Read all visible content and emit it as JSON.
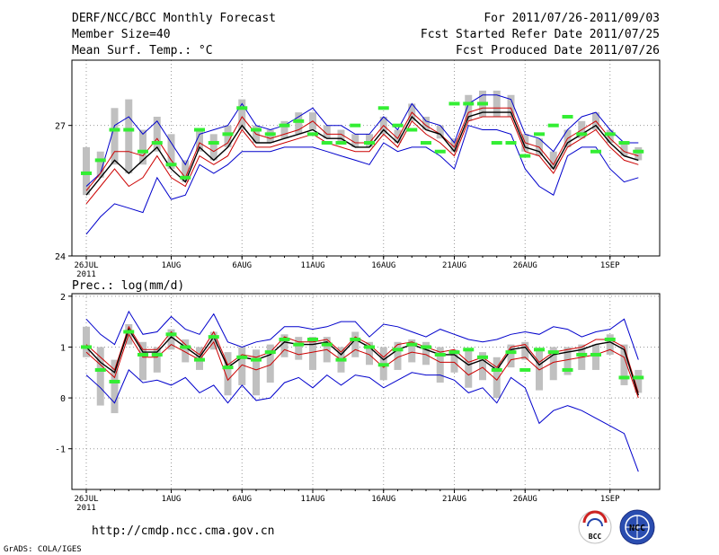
{
  "header": {
    "title": "DERF/NCC/BCC Monthly Forecast",
    "member_size": "Member Size=40",
    "variable1": "Mean Surf. Temp.: °C",
    "period": "For 2011/07/26-2011/09/03",
    "started": "Fcst Started Refer Date 2011/07/25",
    "produced": "Fcst Produced Date 2011/07/26"
  },
  "x_ticks": [
    {
      "day": 0,
      "label": "26JUL",
      "label2": "2011"
    },
    {
      "day": 6,
      "label": "1AUG"
    },
    {
      "day": 11,
      "label": "6AUG"
    },
    {
      "day": 16,
      "label": "11AUG"
    },
    {
      "day": 21,
      "label": "16AUG"
    },
    {
      "day": 26,
      "label": "21AUG"
    },
    {
      "day": 31,
      "label": "26AUG"
    },
    {
      "day": 37,
      "label": "1SEP"
    }
  ],
  "footer": {
    "url": "http://cmdp.ncc.cma.gov.cn",
    "grads": "GrADS: COLA/IGES",
    "logo1_text": "BCC",
    "logo2_text": "NCC"
  },
  "colors": {
    "max_min": "#0000cc",
    "percentile": "#cc0000",
    "mean": "#000000",
    "observed": "#33ee33",
    "spread": "#c0c0c0"
  },
  "chart_data": [
    {
      "type": "line",
      "title": "Mean Surf. Temp.: °C",
      "xlabel": "",
      "ylabel": "",
      "x": [
        0,
        1,
        2,
        3,
        4,
        5,
        6,
        7,
        8,
        9,
        10,
        11,
        12,
        13,
        14,
        15,
        16,
        17,
        18,
        19,
        20,
        21,
        22,
        23,
        24,
        25,
        26,
        27,
        28,
        29,
        30,
        31,
        32,
        33,
        34,
        35,
        36,
        37,
        38,
        39
      ],
      "ylim": [
        24,
        28.5
      ],
      "yticks": [
        24,
        27
      ],
      "series": [
        {
          "name": "max",
          "color": "#0000cc",
          "values": [
            25.6,
            25.9,
            27.0,
            27.2,
            26.8,
            27.1,
            26.6,
            26.1,
            26.8,
            26.9,
            27.0,
            27.5,
            27.0,
            26.9,
            27.0,
            27.2,
            27.4,
            27.0,
            27.0,
            26.8,
            26.8,
            27.2,
            26.9,
            27.5,
            27.1,
            27.0,
            26.6,
            27.5,
            27.7,
            27.7,
            27.6,
            26.8,
            26.7,
            26.4,
            26.9,
            27.2,
            27.3,
            26.9,
            26.6,
            26.6
          ]
        },
        {
          "name": "p_high",
          "color": "#cc0000",
          "values": [
            25.5,
            25.9,
            26.4,
            26.4,
            26.3,
            26.7,
            26.2,
            25.8,
            26.6,
            26.4,
            26.6,
            27.2,
            26.8,
            26.7,
            26.8,
            26.9,
            27.1,
            26.8,
            26.8,
            26.6,
            26.6,
            27.0,
            26.7,
            27.3,
            27.0,
            26.8,
            26.5,
            27.3,
            27.4,
            27.4,
            27.4,
            26.6,
            26.5,
            26.1,
            26.7,
            26.9,
            27.1,
            26.7,
            26.4,
            26.3
          ]
        },
        {
          "name": "mean",
          "color": "#000000",
          "values": [
            25.4,
            25.8,
            26.2,
            25.9,
            26.2,
            26.5,
            26.0,
            25.7,
            26.5,
            26.2,
            26.5,
            27.0,
            26.6,
            26.6,
            26.7,
            26.8,
            26.9,
            26.7,
            26.7,
            26.5,
            26.5,
            26.9,
            26.6,
            27.2,
            26.9,
            26.8,
            26.4,
            27.2,
            27.3,
            27.3,
            27.3,
            26.5,
            26.4,
            26.0,
            26.6,
            26.8,
            27.0,
            26.6,
            26.3,
            26.2
          ]
        },
        {
          "name": "p_low",
          "color": "#cc0000",
          "values": [
            25.2,
            25.6,
            26.0,
            25.6,
            25.8,
            26.3,
            25.8,
            25.6,
            26.3,
            26.1,
            26.3,
            26.9,
            26.5,
            26.5,
            26.6,
            26.7,
            26.8,
            26.6,
            26.5,
            26.4,
            26.4,
            26.8,
            26.5,
            27.1,
            26.8,
            26.6,
            26.3,
            27.1,
            27.2,
            27.2,
            27.2,
            26.4,
            26.3,
            25.9,
            26.5,
            26.7,
            26.9,
            26.5,
            26.2,
            26.1
          ]
        },
        {
          "name": "min",
          "color": "#0000cc",
          "values": [
            24.5,
            24.9,
            25.2,
            25.1,
            25.0,
            25.8,
            25.3,
            25.4,
            26.1,
            25.9,
            26.1,
            26.4,
            26.4,
            26.4,
            26.5,
            26.5,
            26.5,
            26.4,
            26.3,
            26.2,
            26.1,
            26.6,
            26.4,
            26.5,
            26.5,
            26.3,
            26.0,
            27.0,
            26.9,
            26.9,
            26.8,
            26.0,
            25.6,
            25.4,
            26.3,
            26.5,
            26.5,
            26.0,
            25.7,
            25.8
          ]
        }
      ],
      "observed": [
        25.9,
        26.2,
        26.9,
        26.9,
        26.4,
        26.6,
        26.1,
        25.8,
        26.9,
        26.6,
        26.8,
        27.4,
        26.9,
        26.8,
        27.0,
        27.1,
        26.8,
        26.6,
        26.6,
        27.0,
        26.6,
        27.4,
        27.0,
        26.9,
        26.6,
        26.4,
        27.5,
        27.5,
        27.5,
        26.6,
        26.6,
        26.3,
        26.8,
        27.0,
        27.2,
        26.8,
        26.4,
        26.8,
        26.6,
        26.4
      ],
      "spread": [
        [
          25.4,
          26.5
        ],
        [
          25.8,
          26.4
        ],
        [
          26.1,
          27.4
        ],
        [
          25.9,
          27.6
        ],
        [
          26.1,
          26.9
        ],
        [
          26.4,
          27.2
        ],
        [
          26.0,
          26.8
        ],
        [
          25.7,
          26.2
        ],
        [
          26.4,
          26.9
        ],
        [
          26.2,
          26.8
        ],
        [
          26.5,
          27.0
        ],
        [
          26.9,
          27.6
        ],
        [
          26.6,
          27.0
        ],
        [
          26.6,
          26.9
        ],
        [
          26.7,
          27.1
        ],
        [
          26.8,
          27.3
        ],
        [
          26.9,
          27.3
        ],
        [
          26.7,
          27.0
        ],
        [
          26.6,
          26.9
        ],
        [
          26.5,
          26.8
        ],
        [
          26.5,
          26.8
        ],
        [
          26.8,
          27.2
        ],
        [
          26.6,
          26.9
        ],
        [
          27.1,
          27.5
        ],
        [
          26.9,
          27.2
        ],
        [
          26.7,
          27.0
        ],
        [
          26.4,
          26.7
        ],
        [
          27.1,
          27.7
        ],
        [
          27.2,
          27.8
        ],
        [
          27.2,
          27.8
        ],
        [
          27.2,
          27.7
        ],
        [
          26.4,
          26.8
        ],
        [
          26.3,
          26.7
        ],
        [
          26.0,
          26.4
        ],
        [
          26.5,
          26.9
        ],
        [
          26.7,
          27.1
        ],
        [
          26.9,
          27.3
        ],
        [
          26.6,
          26.9
        ],
        [
          26.3,
          26.6
        ],
        [
          26.2,
          26.5
        ]
      ]
    },
    {
      "type": "line",
      "title": "Prec.: log(mm/d)",
      "xlabel": "",
      "ylabel": "",
      "x": [
        0,
        1,
        2,
        3,
        4,
        5,
        6,
        7,
        8,
        9,
        10,
        11,
        12,
        13,
        14,
        15,
        16,
        17,
        18,
        19,
        20,
        21,
        22,
        23,
        24,
        25,
        26,
        27,
        28,
        29,
        30,
        31,
        32,
        33,
        34,
        35,
        36,
        37,
        38,
        39
      ],
      "ylim": [
        -1.8,
        2.05
      ],
      "yticks": [
        -1,
        0,
        1,
        2
      ],
      "series": [
        {
          "name": "max",
          "color": "#0000cc",
          "values": [
            1.55,
            1.25,
            1.05,
            1.7,
            1.25,
            1.3,
            1.6,
            1.35,
            1.25,
            1.65,
            1.1,
            1.0,
            1.1,
            1.15,
            1.4,
            1.4,
            1.35,
            1.4,
            1.5,
            1.5,
            1.2,
            1.45,
            1.4,
            1.3,
            1.2,
            1.35,
            1.25,
            1.15,
            1.1,
            1.15,
            1.25,
            1.3,
            1.25,
            1.4,
            1.35,
            1.2,
            1.3,
            1.35,
            1.55,
            0.75
          ]
        },
        {
          "name": "p_high",
          "color": "#cc0000",
          "values": [
            1.05,
            0.8,
            0.55,
            1.4,
            0.95,
            0.95,
            1.3,
            1.05,
            0.85,
            1.3,
            0.65,
            0.85,
            0.8,
            0.9,
            1.2,
            1.1,
            1.1,
            1.15,
            0.9,
            1.2,
            1.05,
            0.8,
            1.05,
            1.1,
            1.0,
            0.9,
            0.95,
            0.7,
            0.8,
            0.6,
            1.0,
            1.05,
            0.7,
            0.9,
            0.95,
            1.0,
            1.15,
            1.15,
            1.0,
            0.1
          ]
        },
        {
          "name": "mean",
          "color": "#000000",
          "values": [
            1.0,
            0.7,
            0.5,
            1.35,
            0.9,
            0.9,
            1.2,
            1.0,
            0.8,
            1.2,
            0.6,
            0.8,
            0.75,
            0.85,
            1.1,
            1.05,
            1.05,
            1.1,
            0.85,
            1.15,
            1.0,
            0.75,
            0.95,
            1.05,
            0.95,
            0.85,
            0.85,
            0.65,
            0.75,
            0.55,
            0.95,
            1.0,
            0.65,
            0.85,
            0.9,
            0.95,
            1.05,
            1.1,
            0.95,
            0.05
          ]
        },
        {
          "name": "p_low",
          "color": "#cc0000",
          "values": [
            0.9,
            0.65,
            0.4,
            1.25,
            0.8,
            0.8,
            1.05,
            0.9,
            0.75,
            1.1,
            0.35,
            0.65,
            0.55,
            0.65,
            0.95,
            0.85,
            0.9,
            0.95,
            0.75,
            0.95,
            0.85,
            0.6,
            0.8,
            0.9,
            0.85,
            0.7,
            0.7,
            0.45,
            0.6,
            0.35,
            0.75,
            0.8,
            0.55,
            0.7,
            0.75,
            0.8,
            0.85,
            0.95,
            0.8,
            0.0
          ]
        },
        {
          "name": "min",
          "color": "#0000cc",
          "values": [
            0.45,
            0.2,
            -0.1,
            0.55,
            0.3,
            0.35,
            0.25,
            0.4,
            0.1,
            0.25,
            -0.1,
            0.25,
            -0.05,
            0.0,
            0.3,
            0.4,
            0.2,
            0.45,
            0.25,
            0.45,
            0.4,
            0.2,
            0.35,
            0.5,
            0.45,
            0.45,
            0.35,
            0.1,
            0.2,
            -0.1,
            0.4,
            0.2,
            -0.5,
            -0.25,
            -0.15,
            -0.25,
            -0.4,
            -0.55,
            -0.7,
            -1.45
          ]
        }
      ],
      "observed": [
        1.0,
        0.55,
        0.32,
        1.3,
        0.85,
        0.85,
        1.25,
        1.0,
        0.75,
        1.2,
        0.6,
        0.8,
        0.75,
        0.9,
        1.15,
        1.05,
        1.15,
        1.05,
        0.75,
        1.15,
        1.0,
        0.65,
        0.95,
        1.05,
        1.0,
        0.85,
        0.9,
        0.95,
        0.8,
        0.55,
        0.9,
        0.55,
        0.95,
        0.9,
        0.55,
        0.85,
        0.85,
        1.15,
        0.4,
        0.4
      ],
      "spread": [
        [
          0.8,
          1.4
        ],
        [
          -0.15,
          1.0
        ],
        [
          -0.3,
          0.75
        ],
        [
          1.05,
          1.45
        ],
        [
          0.35,
          1.1
        ],
        [
          0.5,
          1.0
        ],
        [
          0.95,
          1.35
        ],
        [
          0.7,
          1.15
        ],
        [
          0.55,
          1.0
        ],
        [
          0.95,
          1.3
        ],
        [
          0.05,
          0.9
        ],
        [
          0.25,
          1.0
        ],
        [
          0.05,
          0.95
        ],
        [
          0.3,
          1.05
        ],
        [
          0.8,
          1.25
        ],
        [
          0.75,
          1.2
        ],
        [
          0.55,
          1.2
        ],
        [
          0.7,
          1.2
        ],
        [
          0.5,
          1.0
        ],
        [
          0.8,
          1.3
        ],
        [
          0.65,
          1.1
        ],
        [
          0.35,
          1.0
        ],
        [
          0.55,
          1.1
        ],
        [
          0.7,
          1.15
        ],
        [
          0.65,
          1.1
        ],
        [
          0.3,
          1.0
        ],
        [
          0.5,
          0.95
        ],
        [
          0.2,
          0.95
        ],
        [
          0.35,
          0.9
        ],
        [
          0.0,
          0.8
        ],
        [
          0.6,
          1.05
        ],
        [
          0.75,
          1.1
        ],
        [
          0.15,
          0.95
        ],
        [
          0.35,
          1.0
        ],
        [
          0.45,
          1.0
        ],
        [
          0.55,
          1.05
        ],
        [
          0.55,
          1.05
        ],
        [
          0.85,
          1.25
        ],
        [
          0.25,
          1.05
        ],
        [
          0.1,
          0.55
        ]
      ]
    }
  ]
}
